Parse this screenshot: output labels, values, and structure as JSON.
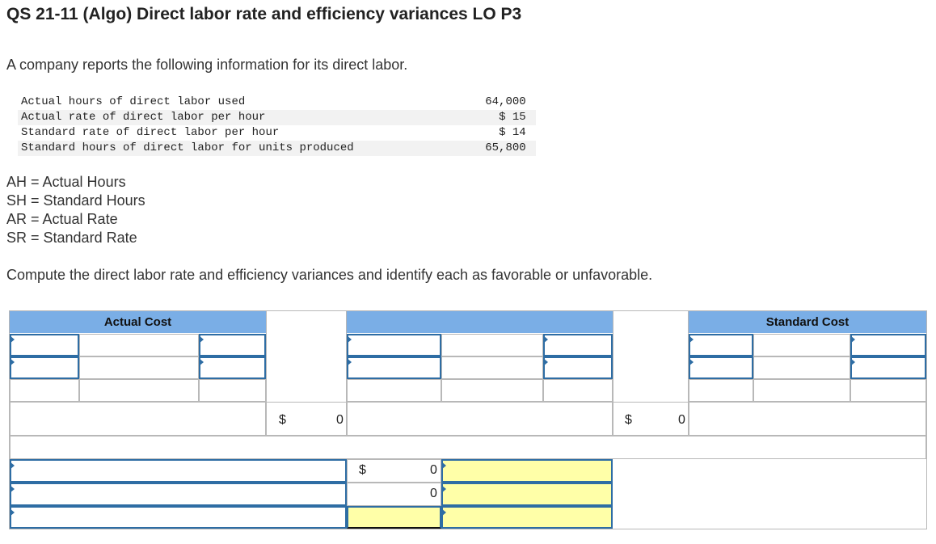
{
  "title": "QS 21-11 (Algo) Direct labor rate and efficiency variances LO P3",
  "intro": "A company reports the following information for its direct labor.",
  "given": [
    {
      "label": "Actual hours of direct labor used",
      "value": "64,000"
    },
    {
      "label": "Actual rate of direct labor per hour",
      "value": "$ 15"
    },
    {
      "label": "Standard rate of direct labor per hour",
      "value": "$ 14"
    },
    {
      "label": "Standard hours of direct labor for units produced",
      "value": "65,800"
    }
  ],
  "definitions": [
    "AH = Actual Hours",
    "SH = Standard Hours",
    "AR = Actual Rate",
    "SR = Standard Rate"
  ],
  "instruction": "Compute the direct labor rate and efficiency variances and identify each as favorable or unfavorable.",
  "worksheet": {
    "actual_cost_header": "Actual Cost",
    "standard_cost_header": "Standard Cost",
    "totals": {
      "actual_currency": "$",
      "actual_value": "0",
      "standard_currency": "$",
      "standard_value": "0"
    },
    "variances": [
      {
        "currency": "$",
        "value": "0"
      },
      {
        "currency": "",
        "value": "0"
      },
      {
        "currency": "",
        "value": ""
      }
    ]
  }
}
